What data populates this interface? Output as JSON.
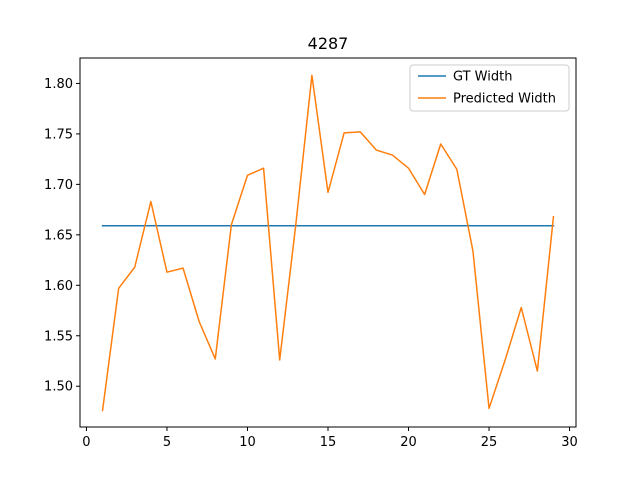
{
  "chart_data": {
    "type": "line",
    "title": "4287",
    "xlabel": "",
    "ylabel": "",
    "xlim": [
      -0.4,
      30.4
    ],
    "ylim": [
      1.4596,
      1.8252
    ],
    "xticks": [
      0,
      5,
      10,
      15,
      20,
      25,
      30
    ],
    "xtick_labels": [
      "0",
      "5",
      "10",
      "15",
      "20",
      "25",
      "30"
    ],
    "yticks": [
      1.5,
      1.55,
      1.6,
      1.65,
      1.7,
      1.75,
      1.8
    ],
    "ytick_labels": [
      "1.50",
      "1.55",
      "1.60",
      "1.65",
      "1.70",
      "1.75",
      "1.80"
    ],
    "grid": false,
    "legend_position": "top-right",
    "x": [
      1,
      2,
      3,
      4,
      5,
      6,
      7,
      8,
      9,
      10,
      11,
      12,
      13,
      14,
      15,
      16,
      17,
      18,
      19,
      20,
      21,
      22,
      23,
      24,
      25,
      26,
      27,
      28,
      29
    ],
    "series": [
      {
        "name": "GT Width",
        "color": "#1f77b4",
        "values": [
          1.659,
          1.659,
          1.659,
          1.659,
          1.659,
          1.659,
          1.659,
          1.659,
          1.659,
          1.659,
          1.659,
          1.659,
          1.659,
          1.659,
          1.659,
          1.659,
          1.659,
          1.659,
          1.659,
          1.659,
          1.659,
          1.659,
          1.659,
          1.659,
          1.659,
          1.659,
          1.659,
          1.659,
          1.659
        ]
      },
      {
        "name": "Predicted Width",
        "color": "#ff7f0e",
        "values": [
          1.476,
          1.597,
          1.618,
          1.683,
          1.613,
          1.617,
          1.564,
          1.527,
          1.66,
          1.709,
          1.716,
          1.526,
          1.66,
          1.808,
          1.692,
          1.751,
          1.752,
          1.734,
          1.729,
          1.716,
          1.69,
          1.74,
          1.715,
          1.634,
          1.478,
          1.526,
          1.578,
          1.515,
          1.668
        ]
      }
    ]
  }
}
